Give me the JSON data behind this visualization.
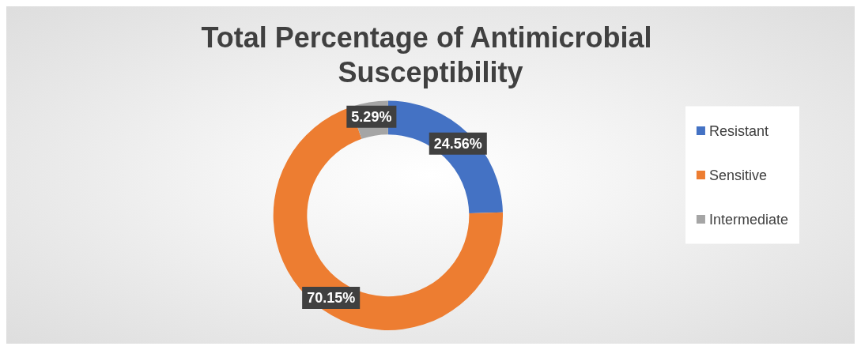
{
  "chart_data": {
    "type": "donut",
    "title": "Total Percentage of Antimicrobial Susceptibility",
    "categories": [
      "Resistant",
      "Sensitive",
      "Intermediate"
    ],
    "values": [
      24.56,
      70.15,
      5.29
    ],
    "colors": [
      "#4472c4",
      "#ed7d31",
      "#a5a5a5"
    ],
    "value_labels": [
      "24.56%",
      "70.15%",
      "5.29%"
    ],
    "legend": "right"
  }
}
